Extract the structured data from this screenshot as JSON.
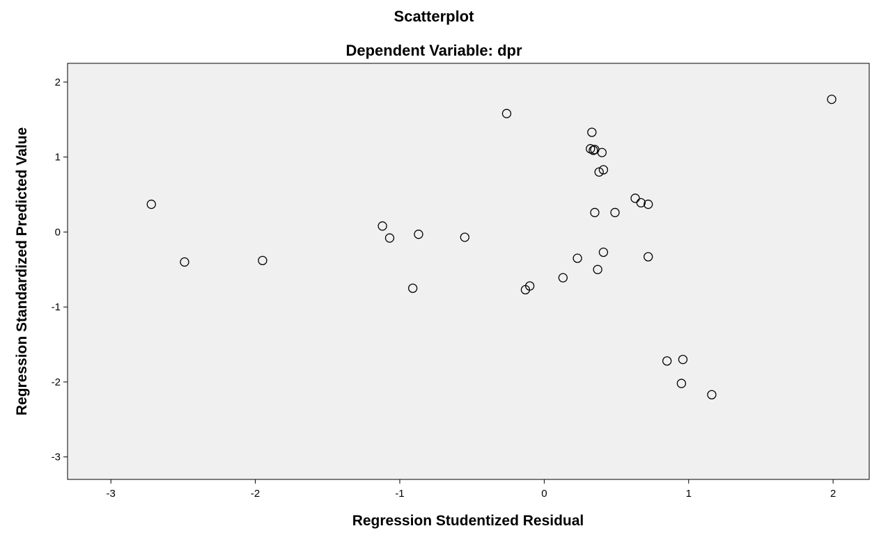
{
  "chart_data": {
    "type": "scatter",
    "title": "Scatterplot",
    "subtitle": "Dependent Variable: dpr",
    "xlabel": "Regression Studentized Residual",
    "ylabel": "Regression Standardized Predicted Value",
    "xlim": [
      -3.3,
      2.25
    ],
    "ylim": [
      -3.3,
      2.25
    ],
    "xticks": [
      -3,
      -2,
      -1,
      0,
      1,
      2
    ],
    "yticks": [
      -3,
      -2,
      -1,
      0,
      1,
      2
    ],
    "xtick_labels": [
      "-3",
      "-2",
      "-1",
      "0",
      "1",
      "2"
    ],
    "ytick_labels": [
      "-3",
      "-2",
      "-1",
      "0",
      "1",
      "2"
    ],
    "grid": false,
    "plot_background": "#f0f0f0",
    "marker_color": "#000000",
    "points": [
      {
        "x": -2.72,
        "y": 0.37
      },
      {
        "x": -2.49,
        "y": -0.4
      },
      {
        "x": -1.95,
        "y": -0.38
      },
      {
        "x": -1.12,
        "y": 0.08
      },
      {
        "x": -1.07,
        "y": -0.08
      },
      {
        "x": -0.87,
        "y": -0.03
      },
      {
        "x": -0.91,
        "y": -0.75
      },
      {
        "x": -0.55,
        "y": -0.07
      },
      {
        "x": -0.26,
        "y": 1.58
      },
      {
        "x": -0.13,
        "y": -0.77
      },
      {
        "x": -0.1,
        "y": -0.72
      },
      {
        "x": 0.13,
        "y": -0.61
      },
      {
        "x": 0.23,
        "y": -0.35
      },
      {
        "x": 0.33,
        "y": 1.33
      },
      {
        "x": 0.32,
        "y": 1.11
      },
      {
        "x": 0.34,
        "y": 1.09
      },
      {
        "x": 0.35,
        "y": 1.1
      },
      {
        "x": 0.4,
        "y": 1.06
      },
      {
        "x": 0.41,
        "y": 0.83
      },
      {
        "x": 0.38,
        "y": 0.8
      },
      {
        "x": 0.35,
        "y": 0.26
      },
      {
        "x": 0.49,
        "y": 0.26
      },
      {
        "x": 0.41,
        "y": -0.27
      },
      {
        "x": 0.37,
        "y": -0.5
      },
      {
        "x": 0.63,
        "y": 0.45
      },
      {
        "x": 0.67,
        "y": 0.39
      },
      {
        "x": 0.72,
        "y": 0.37
      },
      {
        "x": 0.72,
        "y": -0.33
      },
      {
        "x": 0.85,
        "y": -1.72
      },
      {
        "x": 0.96,
        "y": -1.7
      },
      {
        "x": 0.95,
        "y": -2.02
      },
      {
        "x": 1.16,
        "y": -2.17
      },
      {
        "x": 1.99,
        "y": 1.77
      }
    ]
  }
}
